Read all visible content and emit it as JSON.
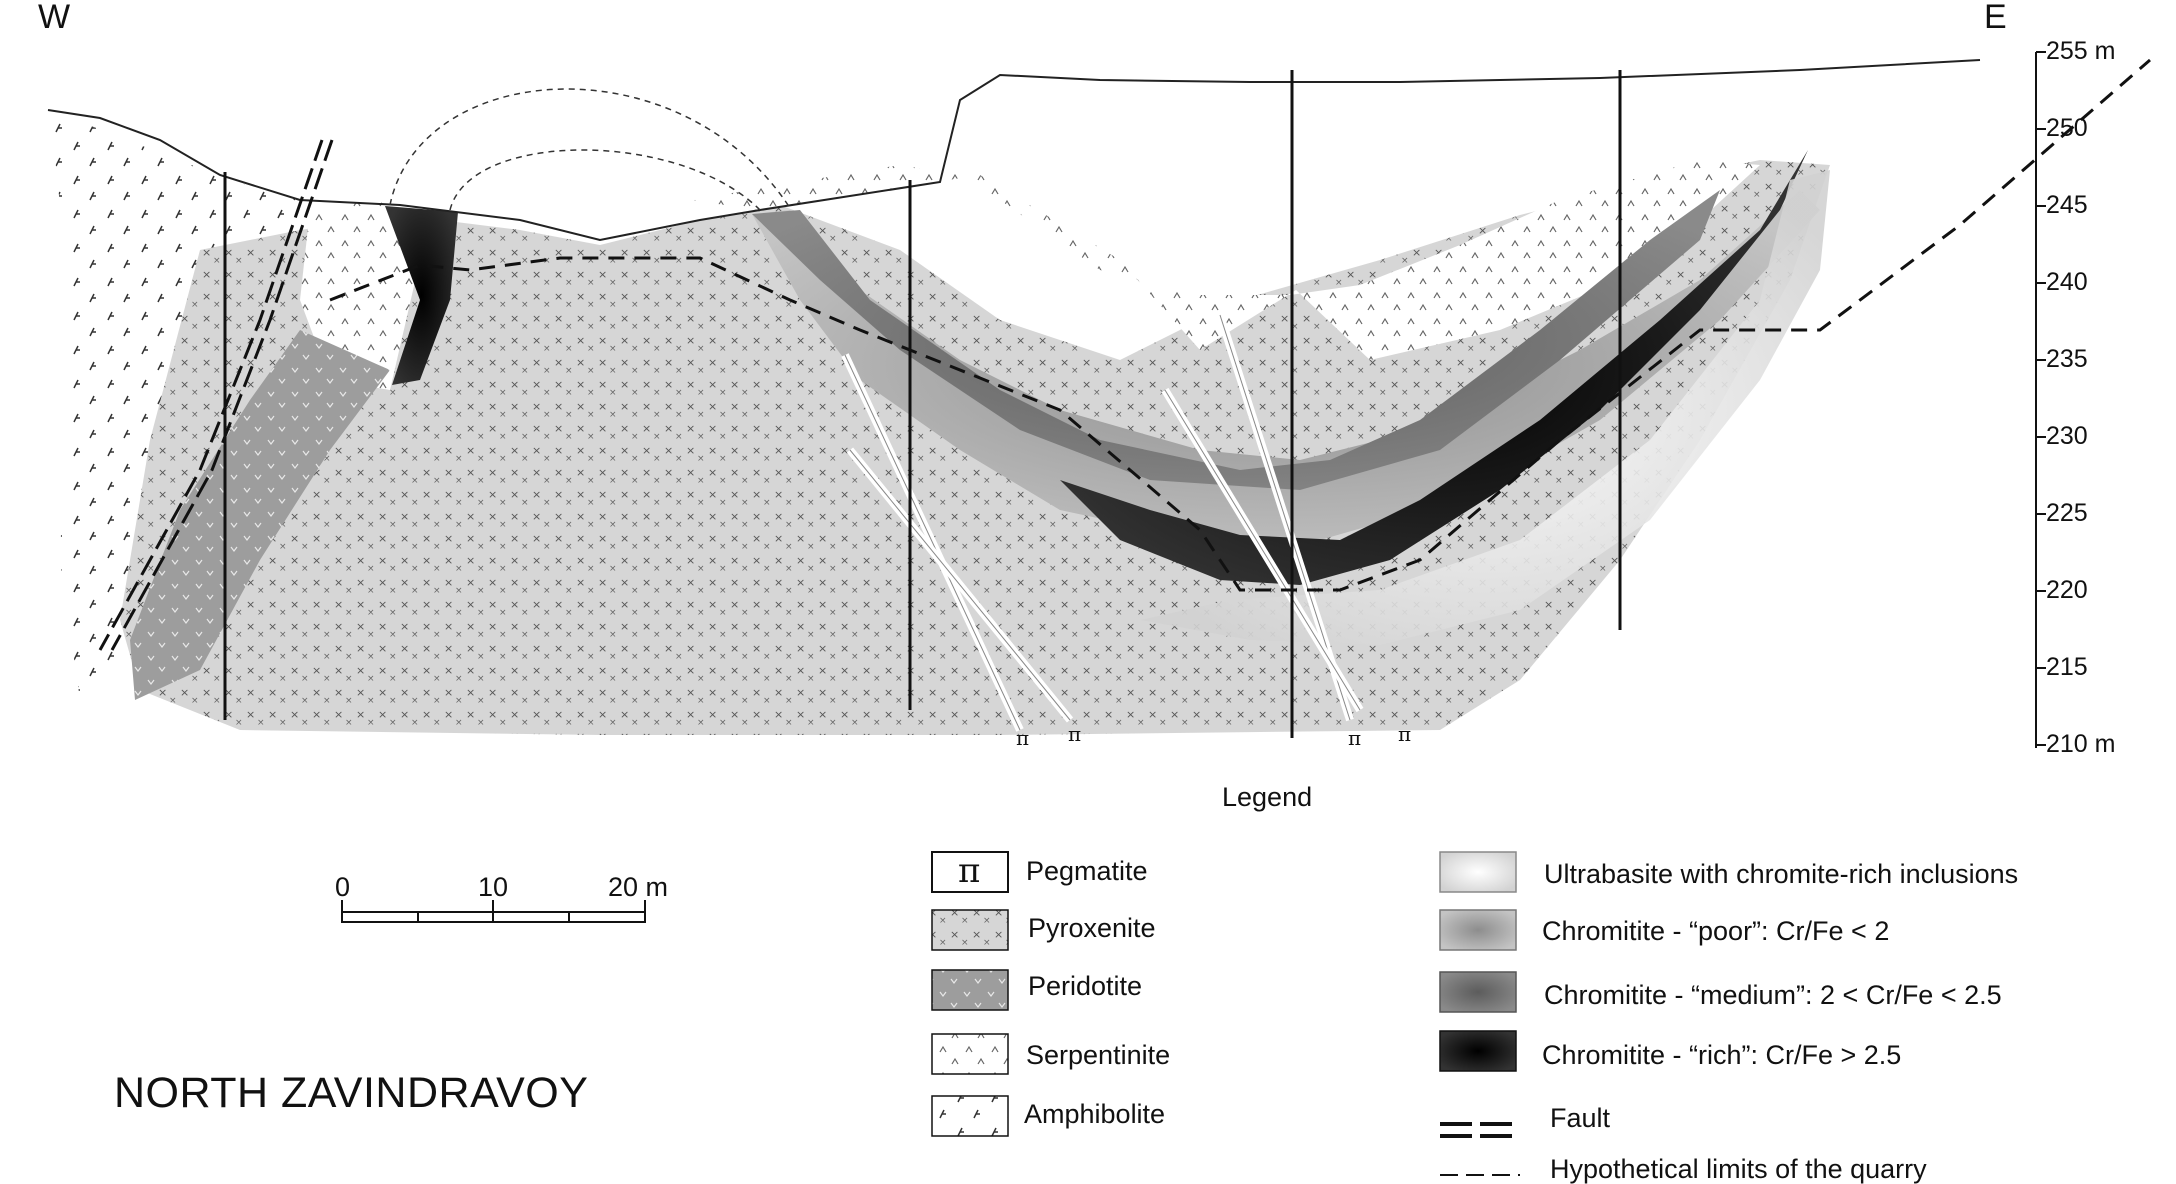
{
  "section": {
    "west_label": "W",
    "east_label": "E",
    "pegmatite_symbol": "π",
    "elevation_ticks": [
      "255 m",
      "250",
      "245",
      "240",
      "235",
      "230",
      "225",
      "220",
      "215",
      "210 m"
    ]
  },
  "legend": {
    "title": "Legend",
    "rock_units": [
      {
        "symbol": "π",
        "label": "Pegmatite"
      },
      {
        "label": "Pyroxenite"
      },
      {
        "label": "Peridotite"
      },
      {
        "label": "Serpentinite"
      },
      {
        "label": "Amphibolite"
      }
    ],
    "ore_units": [
      {
        "label": "Ultrabasite with chromite-rich inclusions"
      },
      {
        "label": "Chromitite - “poor”: Cr/Fe < 2"
      },
      {
        "label": "Chromitite - “medium”: 2 < Cr/Fe < 2.5"
      },
      {
        "label": "Chromitite - “rich”: Cr/Fe > 2.5"
      }
    ],
    "fault_label": "Fault",
    "quarry_label": "Hypothetical limits of the quarry"
  },
  "scale_bar": {
    "labels": [
      "0",
      "10",
      "20 m"
    ]
  },
  "site_name": "NORTH ZAVINDRAVOY",
  "colors": {
    "pyroxenite": "#d4d4d4",
    "peridotite": "#9a9a9a",
    "serpentinite": "#ffffff",
    "chromitite_rich": "#0d0d0d",
    "chromitite_medium": "#555555",
    "chromitite_poor": "#a8a8a8",
    "ultrabasite": "#eeeeee"
  }
}
